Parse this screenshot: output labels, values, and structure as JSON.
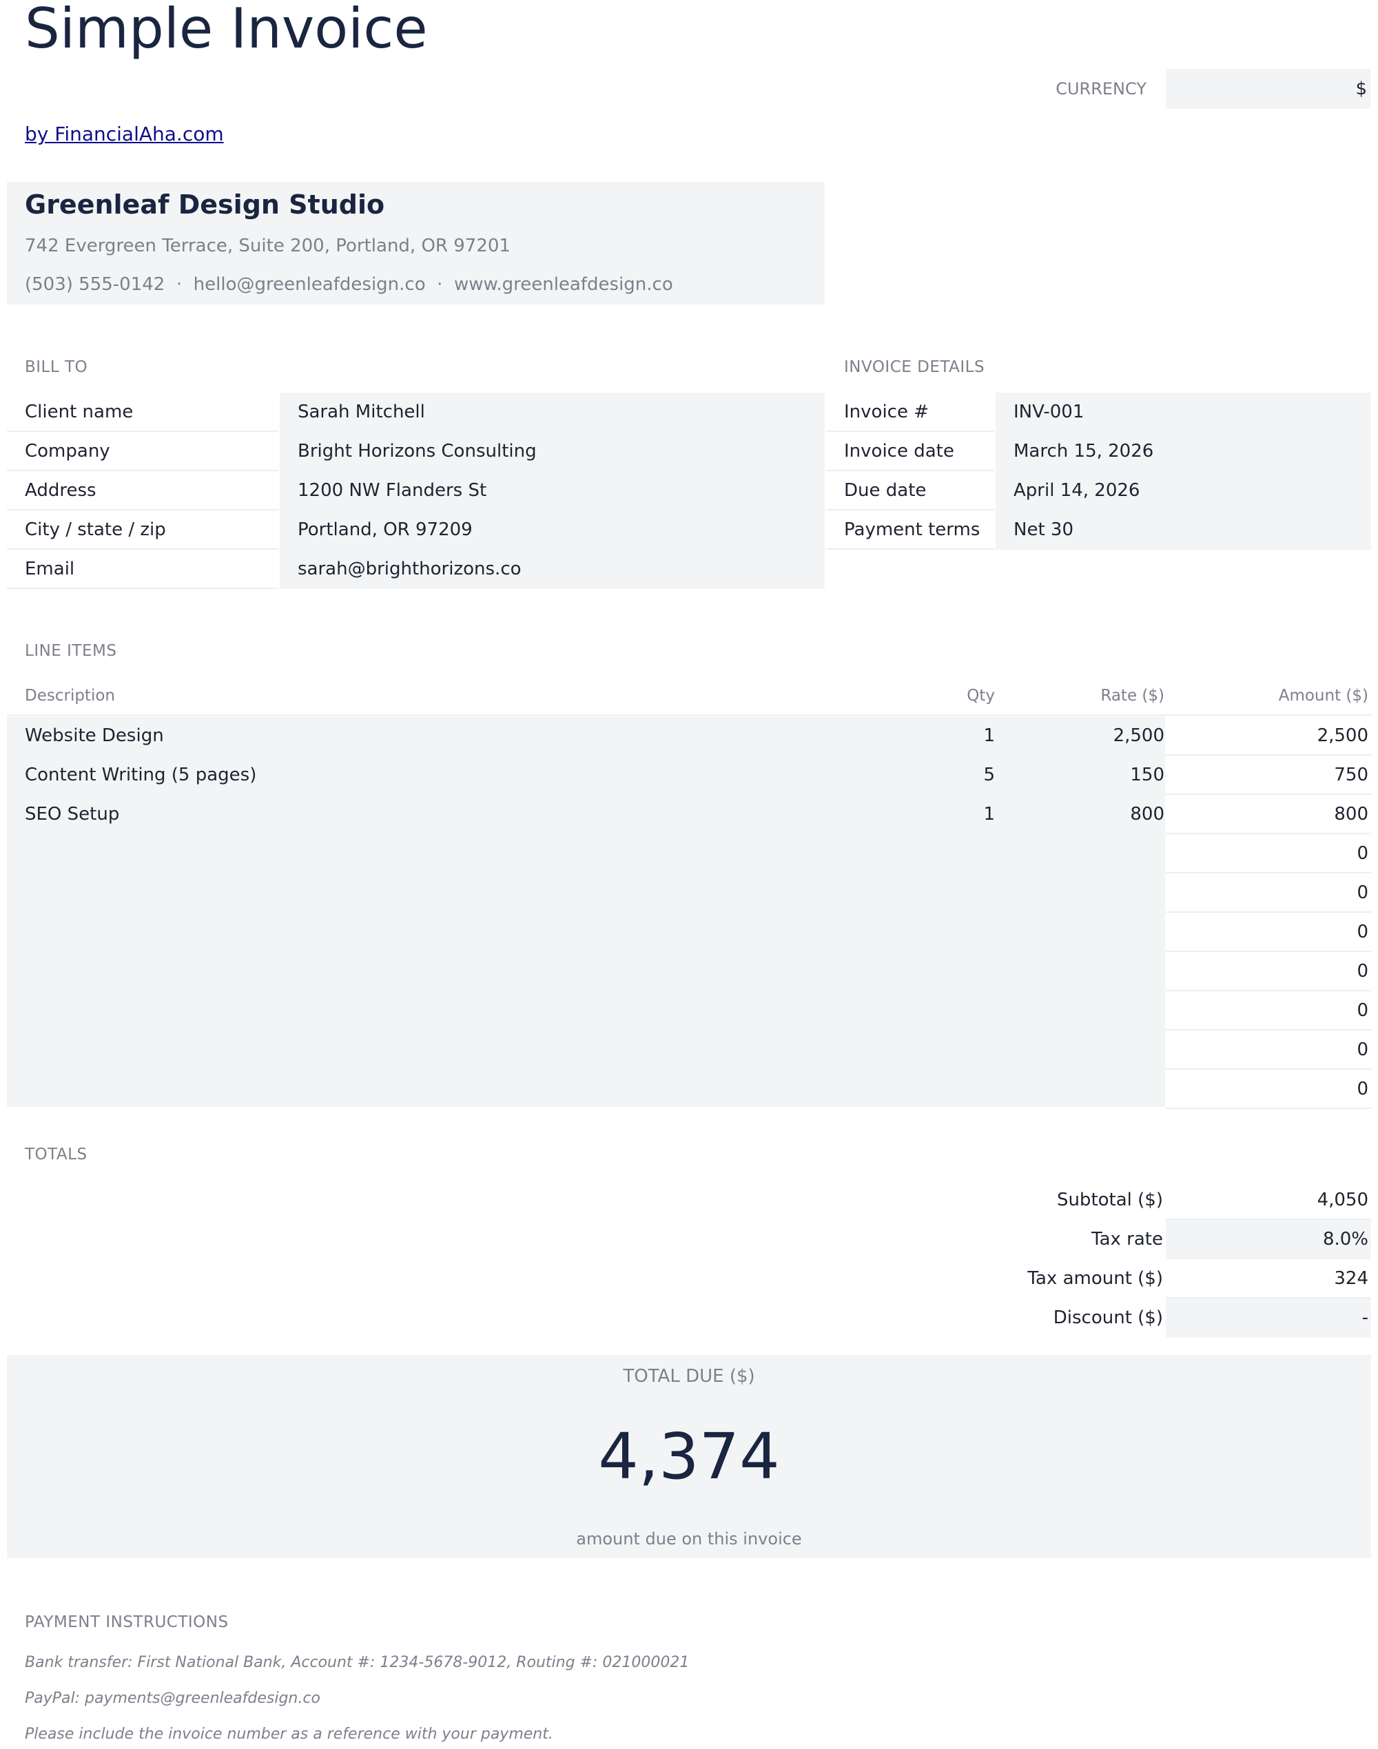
{
  "header": {
    "title": "Simple Invoice",
    "byline": "by FinancialAha.com",
    "currency_label": "CURRENCY",
    "currency_value": "$"
  },
  "company": {
    "name": "Greenleaf Design Studio",
    "address": "742 Evergreen Terrace, Suite 200, Portland, OR 97201",
    "contact": "(503) 555-0142  ·  hello@greenleafdesign.co  ·  www.greenleafdesign.co"
  },
  "bill_to": {
    "section_label": "BILL TO",
    "rows": [
      {
        "label": "Client name",
        "value": "Sarah Mitchell"
      },
      {
        "label": "Company",
        "value": "Bright Horizons Consulting"
      },
      {
        "label": "Address",
        "value": "1200 NW Flanders St"
      },
      {
        "label": "City / state / zip",
        "value": "Portland, OR 97209"
      },
      {
        "label": "Email",
        "value": "sarah@brighthorizons.co"
      }
    ]
  },
  "invoice_details": {
    "section_label": "INVOICE DETAILS",
    "rows": [
      {
        "label": "Invoice #",
        "value": "INV-001"
      },
      {
        "label": "Invoice date",
        "value": "March 15, 2026"
      },
      {
        "label": "Due date",
        "value": "April 14, 2026"
      },
      {
        "label": "Payment terms",
        "value": "Net 30"
      }
    ]
  },
  "line_items": {
    "section_label": "LINE ITEMS",
    "headers": {
      "description": "Description",
      "qty": "Qty",
      "rate": "Rate ($)",
      "amount": "Amount ($)"
    },
    "rows": [
      {
        "description": "Website Design",
        "qty": "1",
        "rate": "2,500",
        "amount": "2,500"
      },
      {
        "description": "Content Writing (5 pages)",
        "qty": "5",
        "rate": "150",
        "amount": "750"
      },
      {
        "description": "SEO Setup",
        "qty": "1",
        "rate": "800",
        "amount": "800"
      },
      {
        "description": "",
        "qty": "",
        "rate": "",
        "amount": "0"
      },
      {
        "description": "",
        "qty": "",
        "rate": "",
        "amount": "0"
      },
      {
        "description": "",
        "qty": "",
        "rate": "",
        "amount": "0"
      },
      {
        "description": "",
        "qty": "",
        "rate": "",
        "amount": "0"
      },
      {
        "description": "",
        "qty": "",
        "rate": "",
        "amount": "0"
      },
      {
        "description": "",
        "qty": "",
        "rate": "",
        "amount": "0"
      },
      {
        "description": "",
        "qty": "",
        "rate": "",
        "amount": "0"
      }
    ]
  },
  "totals": {
    "section_label": "TOTALS",
    "subtotal_label": "Subtotal ($)",
    "subtotal_value": "4,050",
    "tax_rate_label": "Tax rate",
    "tax_rate_value": "8.0%",
    "tax_amount_label": "Tax amount ($)",
    "tax_amount_value": "324",
    "discount_label": "Discount ($)",
    "discount_value": "-"
  },
  "total_due": {
    "label": "TOTAL DUE ($)",
    "amount": "4,374",
    "note": "amount due on this invoice"
  },
  "payment": {
    "section_label": "PAYMENT INSTRUCTIONS",
    "lines": [
      "Bank transfer: First National Bank, Account #: 1234-5678-9012, Routing #: 021000021",
      "PayPal: payments@greenleafdesign.co",
      "Please include the invoice number as a reference with your payment."
    ]
  }
}
